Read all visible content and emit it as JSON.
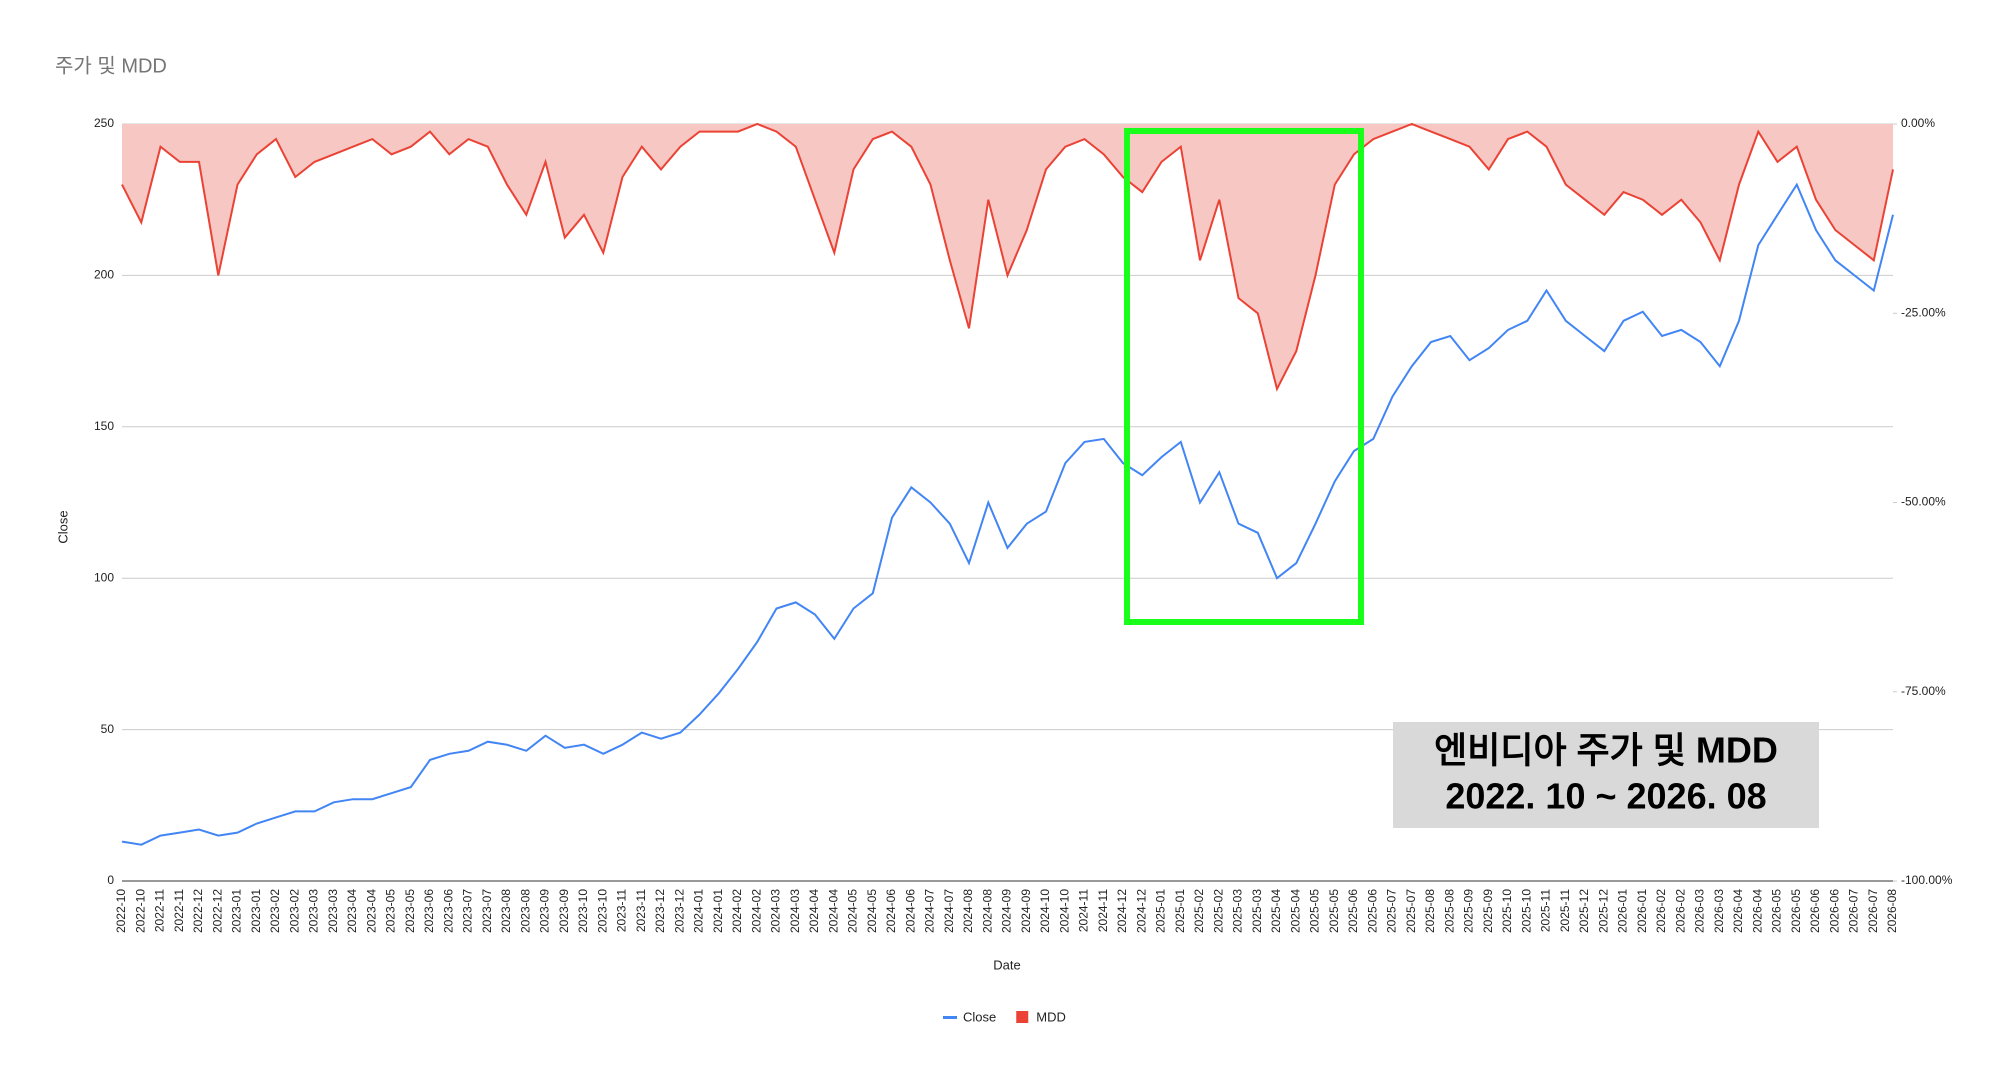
{
  "chart_data": {
    "type": "line",
    "title": "주가 및 MDD",
    "x_label": "Date",
    "y_label": "Close",
    "annotation": [
      "엔비디아 주가 및 MDD",
      "2022. 10 ~ 2026. 08"
    ],
    "categories": [
      "2022-10",
      "2022-10",
      "2022-11",
      "2022-11",
      "2022-12",
      "2022-12",
      "2023-01",
      "2023-01",
      "2023-02",
      "2023-02",
      "2023-03",
      "2023-03",
      "2023-04",
      "2023-04",
      "2023-05",
      "2023-05",
      "2023-06",
      "2023-06",
      "2023-07",
      "2023-07",
      "2023-08",
      "2023-08",
      "2023-09",
      "2023-09",
      "2023-10",
      "2023-10",
      "2023-11",
      "2023-11",
      "2023-12",
      "2023-12",
      "2024-01",
      "2024-01",
      "2024-02",
      "2024-02",
      "2024-03",
      "2024-03",
      "2024-04",
      "2024-04",
      "2024-05",
      "2024-05",
      "2024-06",
      "2024-06",
      "2024-07",
      "2024-07",
      "2024-08",
      "2024-08",
      "2024-09",
      "2024-09",
      "2024-10",
      "2024-10",
      "2024-11",
      "2024-11",
      "2024-12",
      "2024-12",
      "2025-01",
      "2025-01",
      "2025-02",
      "2025-02",
      "2025-03",
      "2025-03",
      "2025-04",
      "2025-04",
      "2025-05",
      "2025-05",
      "2025-06",
      "2025-06",
      "2025-07",
      "2025-07",
      "2025-08",
      "2025-08",
      "2025-09",
      "2025-09",
      "2025-10",
      "2025-10",
      "2025-11",
      "2025-11",
      "2025-12",
      "2025-12",
      "2026-01",
      "2026-01",
      "2026-02",
      "2026-02",
      "2026-03",
      "2026-03",
      "2026-04",
      "2026-04",
      "2026-05",
      "2026-05",
      "2026-06",
      "2026-06",
      "2026-07",
      "2026-07",
      "2026-08"
    ],
    "series": [
      {
        "name": "Close",
        "color": "#4285f4",
        "values": [
          13,
          12,
          15,
          16,
          17,
          15,
          16,
          19,
          21,
          23,
          23,
          26,
          27,
          27,
          29,
          31,
          40,
          42,
          43,
          46,
          45,
          43,
          48,
          44,
          45,
          42,
          45,
          49,
          47,
          49,
          55,
          62,
          70,
          79,
          90,
          92,
          88,
          80,
          90,
          95,
          120,
          130,
          125,
          118,
          105,
          125,
          110,
          118,
          122,
          138,
          145,
          146,
          138,
          134,
          140,
          145,
          125,
          135,
          118,
          115,
          100,
          105,
          118,
          132,
          142,
          146,
          160,
          170,
          178,
          180,
          172,
          176,
          182,
          185,
          195,
          185,
          180,
          175,
          185,
          188,
          180,
          182,
          178,
          170,
          185,
          210,
          220,
          230,
          215,
          205,
          200,
          195,
          220
        ]
      },
      {
        "name": "MDD",
        "color": "#ea4335",
        "fill": "#f6c7c3",
        "axis": "y2",
        "values": [
          -8,
          -13,
          -3,
          -5,
          -5,
          -20,
          -8,
          -4,
          -2,
          -7,
          -5,
          -4,
          -3,
          -2,
          -4,
          -3,
          -1,
          -4,
          -2,
          -3,
          -8,
          -12,
          -5,
          -15,
          -12,
          -17,
          -7,
          -3,
          -6,
          -3,
          -1,
          -1,
          -1,
          0,
          -1,
          -3,
          -10,
          -17,
          -6,
          -2,
          -1,
          -3,
          -8,
          -18,
          -27,
          -10,
          -20,
          -14,
          -6,
          -3,
          -2,
          -4,
          -7,
          -9,
          -5,
          -3,
          -18,
          -10,
          -23,
          -25,
          -35,
          -30,
          -20,
          -8,
          -4,
          -2,
          -1,
          0,
          -1,
          -2,
          -3,
          -6,
          -2,
          -1,
          -3,
          -8,
          -10,
          -12,
          -9,
          -10,
          -12,
          -10,
          -13,
          -18,
          -8,
          -1,
          -5,
          -3,
          -10,
          -14,
          -16,
          -18,
          -6
        ]
      }
    ],
    "ylim": [
      0,
      250
    ],
    "yticks": [
      0,
      50,
      100,
      150,
      200,
      250
    ],
    "y2lim": [
      -100,
      0
    ],
    "y2ticks": [
      {
        "value": -100,
        "label": "-100.00%"
      },
      {
        "value": -75,
        "label": "-75.00%"
      },
      {
        "value": -50,
        "label": "-50.00%"
      },
      {
        "value": -25,
        "label": "-25.00%"
      },
      {
        "value": 0,
        "label": "0.00%"
      }
    ],
    "grid": true,
    "legend": "bottom"
  }
}
